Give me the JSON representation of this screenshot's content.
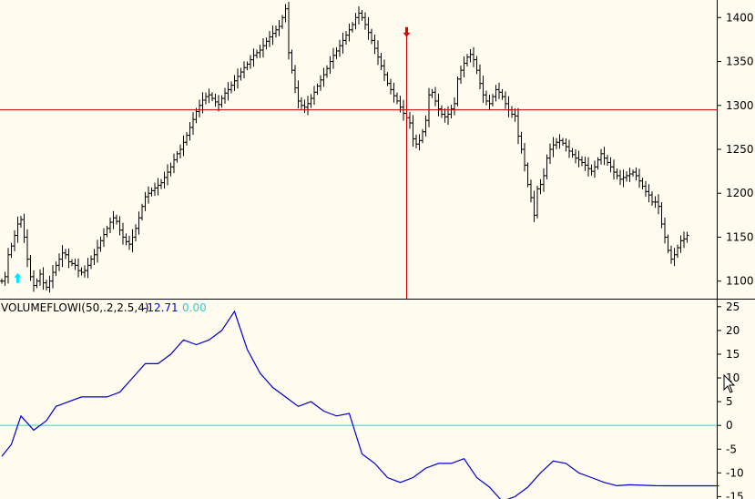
{
  "chart_data": [
    {
      "type": "bar",
      "subtype": "ohlc",
      "title": "",
      "ylim": [
        1080,
        1420
      ],
      "yticks": [
        1100,
        1150,
        1200,
        1250,
        1300,
        1350,
        1400
      ],
      "reference_line": {
        "y": 1295,
        "color": "#cc0000"
      },
      "signal_line": {
        "bar_index": 127,
        "color": "#cc0000"
      },
      "signals": [
        {
          "type": "buy",
          "bar_index": 5,
          "price": 1103,
          "color": "#00e5ff"
        },
        {
          "type": "sell",
          "bar_index": 127,
          "price": 1384,
          "color": "#e00000"
        }
      ],
      "bar_color": "#000000",
      "grid": false,
      "closes": [
        1100,
        1105,
        1130,
        1140,
        1152,
        1165,
        1170,
        1150,
        1125,
        1105,
        1095,
        1100,
        1108,
        1098,
        1093,
        1100,
        1110,
        1118,
        1125,
        1132,
        1130,
        1122,
        1120,
        1118,
        1112,
        1110,
        1112,
        1118,
        1125,
        1130,
        1138,
        1146,
        1153,
        1160,
        1167,
        1172,
        1168,
        1158,
        1150,
        1145,
        1142,
        1150,
        1160,
        1172,
        1185,
        1196,
        1200,
        1203,
        1206,
        1209,
        1212,
        1218,
        1224,
        1230,
        1238,
        1245,
        1250,
        1258,
        1266,
        1275,
        1284,
        1293,
        1300,
        1306,
        1310,
        1312,
        1308,
        1304,
        1301,
        1308,
        1314,
        1318,
        1323,
        1328,
        1333,
        1338,
        1343,
        1347,
        1352,
        1357,
        1360,
        1363,
        1368,
        1373,
        1378,
        1382,
        1386,
        1390,
        1400,
        1410,
        1360,
        1340,
        1320,
        1305,
        1300,
        1298,
        1302,
        1308,
        1315,
        1322,
        1329,
        1335,
        1342,
        1350,
        1357,
        1362,
        1368,
        1374,
        1380,
        1386,
        1392,
        1400,
        1405,
        1400,
        1392,
        1383,
        1374,
        1365,
        1355,
        1345,
        1335,
        1325,
        1318,
        1311,
        1305,
        1298,
        1291,
        1286,
        1280,
        1262,
        1256,
        1260,
        1270,
        1283,
        1312,
        1315,
        1305,
        1296,
        1290,
        1287,
        1290,
        1296,
        1302,
        1330,
        1340,
        1348,
        1355,
        1358,
        1352,
        1340,
        1325,
        1312,
        1305,
        1302,
        1310,
        1318,
        1315,
        1310,
        1302,
        1295,
        1290,
        1288,
        1265,
        1250,
        1232,
        1210,
        1195,
        1175,
        1205,
        1210,
        1220,
        1240,
        1250,
        1255,
        1258,
        1260,
        1257,
        1253,
        1248,
        1244,
        1240,
        1238,
        1235,
        1232,
        1228,
        1225,
        1230,
        1238,
        1245,
        1240,
        1235,
        1230,
        1224,
        1220,
        1216,
        1218,
        1220,
        1222,
        1224,
        1220,
        1214,
        1208,
        1202,
        1198,
        1190,
        1190,
        1185,
        1165,
        1150,
        1135,
        1125,
        1130,
        1138,
        1146,
        1148,
        1152
      ]
    },
    {
      "type": "line",
      "title": "",
      "indicator": {
        "name": "VOLUMEFLOWI(50,.2,2.5,4)",
        "value": "-12.71",
        "signal_value": "0.00"
      },
      "ylim": [
        -15.5,
        26.5
      ],
      "yticks": [
        -15,
        -10,
        -5,
        0,
        5,
        10,
        15,
        20,
        25
      ],
      "zero_line_color": "#33cccc",
      "series": [
        {
          "color": "#0000cc",
          "x": [
            0,
            3,
            6,
            10,
            14,
            17,
            21,
            25,
            29,
            33,
            37,
            41,
            45,
            49,
            53,
            57,
            61,
            65,
            69,
            73,
            77,
            81,
            85,
            89,
            93,
            97,
            101,
            105,
            109,
            113,
            117,
            121,
            125,
            129,
            133,
            137,
            141,
            145,
            149,
            153,
            157,
            161,
            165,
            169,
            173,
            177,
            181,
            185,
            189,
            193,
            197,
            201,
            205,
            209,
            213,
            217,
            221,
            225
          ],
          "values": [
            -6.5,
            -4,
            2,
            -1,
            1,
            4,
            5,
            6,
            6,
            6,
            7,
            10,
            13,
            13,
            15,
            18,
            17,
            18,
            20,
            24,
            16,
            11,
            8,
            6,
            4,
            5,
            3,
            2,
            2.5,
            -6,
            -8,
            -11,
            -12,
            -11,
            -9,
            -8,
            -8,
            -7,
            -11,
            -13,
            -16,
            -15,
            -13,
            -10,
            -7.5,
            -8,
            -10,
            -11,
            -12,
            -12.7,
            -12.5,
            -12.6,
            -12.7,
            -12.71,
            -12.71,
            -12.71,
            -12.71,
            -12.71
          ]
        }
      ]
    }
  ]
}
